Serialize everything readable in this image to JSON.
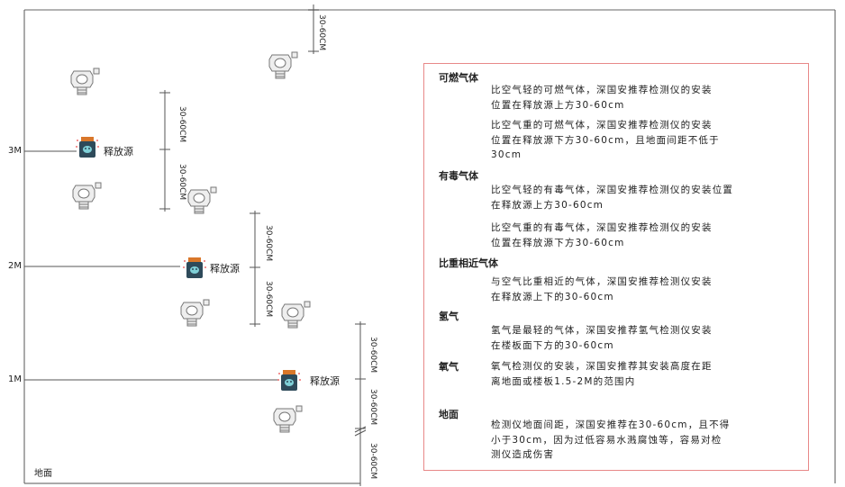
{
  "levels": {
    "m3": "3M",
    "m2": "2M",
    "m1": "1M",
    "ground": "地面"
  },
  "dimension_label": "30-60CM",
  "source_label": "释放源",
  "icons": {
    "detector": "gas-detector-icon",
    "source": "release-source-icon"
  },
  "colors": {
    "box_border": "#e88888",
    "source_top": "#d9772a",
    "source_body": "#2e4a5a"
  },
  "notes": [
    {
      "title": "可燃气体",
      "paragraphs": [
        [
          "比空气轻的可燃气体，深国安推荐检测仪的安装",
          "位置在释放源上方30-60cm"
        ],
        [
          "比空气重的可燃气体，深国安推荐检测仪的安装",
          "位置在释放源下方30-60cm，且地面间距不低于",
          "30cm"
        ]
      ]
    },
    {
      "title": "有毒气体",
      "paragraphs": [
        [
          "比空气轻的有毒气体，深国安推荐检测仪的安装位置",
          "在释放源上方30-60cm"
        ],
        [
          "比空气重的有毒气体，深国安推荐检测仪的安装",
          "位置在释放源下方30-60cm"
        ]
      ]
    },
    {
      "title": "比重相近气体",
      "paragraphs": [
        [
          "与空气比重相近的气体，深国安推荐检测仪安装",
          "在释放源上下的30-60cm"
        ]
      ]
    },
    {
      "title": "氢气",
      "paragraphs": [
        [
          "氢气是最轻的气体，深国安推荐氢气检测仪安装",
          "在楼板面下方的30-60cm"
        ]
      ]
    },
    {
      "title": "氧气",
      "paragraphs": [
        [
          "氧气检测仪的安装，深国安推荐其安装高度在距",
          "离地面或楼板1.5-2M的范围内"
        ]
      ]
    },
    {
      "title": "地面",
      "paragraphs": [
        [
          "检测仪地面间距，深国安推荐在30-60cm，且不得",
          "小于30cm，因为过低容易水溅腐蚀等，容易对检",
          "测仪造成伤害"
        ]
      ]
    }
  ]
}
